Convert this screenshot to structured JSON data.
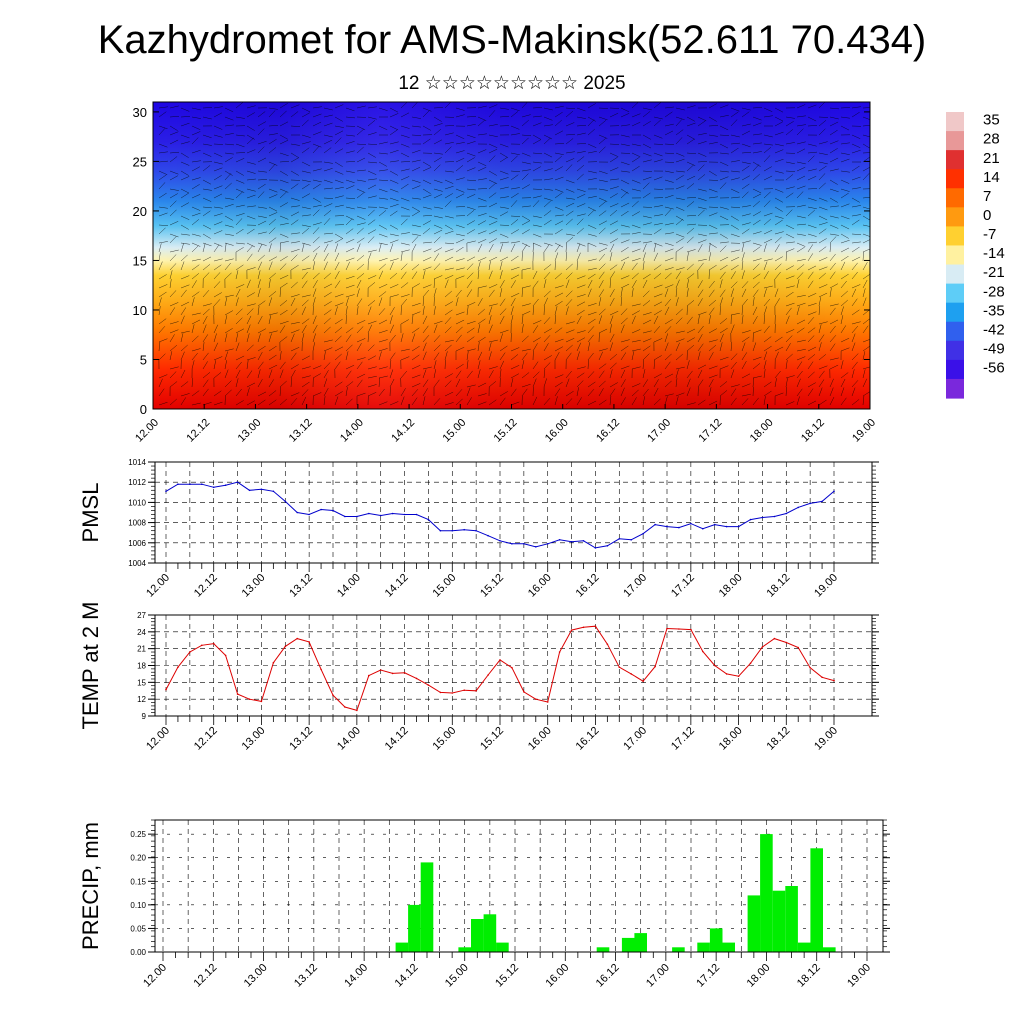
{
  "header": {
    "title": "Kazhydromet for AMS-Makinsk(52.611 70.434)",
    "subtitle": "12 ☆☆☆☆☆☆☆☆☆ 2025"
  },
  "time_labels": [
    "12.00",
    "12.12",
    "13.00",
    "13.12",
    "14.00",
    "14.12",
    "15.00",
    "15.12",
    "16.00",
    "16.12",
    "17.00",
    "17.12",
    "18.00",
    "18.12",
    "19.00"
  ],
  "chart_data": [
    {
      "type": "heatmap",
      "title": "",
      "x_ticks": [
        "12.00",
        "12.12",
        "13.00",
        "13.12",
        "14.00",
        "14.12",
        "15.00",
        "15.12",
        "16.00",
        "16.12",
        "17.00",
        "17.12",
        "18.00",
        "18.12",
        "19.00"
      ],
      "xlim": [
        0,
        168
      ],
      "ylim": [
        0,
        31
      ],
      "y_ticks": [
        0,
        5,
        10,
        15,
        20,
        25,
        30
      ],
      "colorbar": {
        "labels": [
          "35",
          "28",
          "21",
          "14",
          "7",
          "0",
          "-7",
          "-14",
          "-21",
          "-28",
          "-35",
          "-42",
          "-49",
          "-56"
        ],
        "colors": [
          "#f0c8c8",
          "#e89898",
          "#e03030",
          "#ff3000",
          "#ff6a00",
          "#ff9a10",
          "#ffd030",
          "#fff1a0",
          "#d8ecf4",
          "#5ecdf7",
          "#1ea0f0",
          "#3060ee",
          "#4030e6",
          "#3a10e8",
          "#7a28dc"
        ]
      },
      "gradient_levels": [
        {
          "level": 0,
          "color": "#e40000"
        },
        {
          "level": 4,
          "color": "#ff2a00"
        },
        {
          "level": 8,
          "color": "#ff7a00"
        },
        {
          "level": 11,
          "color": "#ffae18"
        },
        {
          "level": 13.5,
          "color": "#ffd232"
        },
        {
          "level": 15,
          "color": "#fff4b0"
        },
        {
          "level": 16.3,
          "color": "#dbeef5"
        },
        {
          "level": 18.5,
          "color": "#58c3f3"
        },
        {
          "level": 21,
          "color": "#2a86ec"
        },
        {
          "level": 24,
          "color": "#2e48ea"
        },
        {
          "level": 27,
          "color": "#2a1ee6"
        },
        {
          "level": 31,
          "color": "#1f06e4"
        }
      ]
    },
    {
      "type": "line",
      "ylabel": "PMSL",
      "ylim": [
        1004,
        1014
      ],
      "y_ticks": [
        1004,
        1006,
        1008,
        1010,
        1012,
        1014
      ],
      "color": "#0000cc",
      "x_ticks": [
        "12.00",
        "12.12",
        "13.00",
        "13.12",
        "14.00",
        "14.12",
        "15.00",
        "15.12",
        "16.00",
        "16.12",
        "17.00",
        "17.12",
        "18.00",
        "18.12",
        "19.00"
      ],
      "x": [
        0,
        3,
        6,
        9,
        12,
        15,
        18,
        21,
        24,
        27,
        30,
        33,
        36,
        39,
        42,
        45,
        48,
        51,
        54,
        57,
        60,
        63,
        66,
        69,
        72,
        75,
        78,
        81,
        84,
        87,
        90,
        93,
        96,
        99,
        102,
        105,
        108,
        111,
        114,
        117,
        120,
        123,
        126,
        129,
        132,
        135,
        138,
        141,
        144,
        147,
        150,
        153,
        156,
        159,
        162,
        165,
        168
      ],
      "values": [
        1011.1,
        1011.8,
        1011.8,
        1011.8,
        1011.5,
        1011.7,
        1012.0,
        1011.2,
        1011.3,
        1011.1,
        1010.1,
        1009.0,
        1008.8,
        1009.3,
        1009.2,
        1008.6,
        1008.6,
        1008.9,
        1008.7,
        1008.9,
        1008.8,
        1008.8,
        1008.3,
        1007.2,
        1007.2,
        1007.3,
        1007.2,
        1006.7,
        1006.2,
        1005.9,
        1005.9,
        1005.6,
        1005.9,
        1006.3,
        1006.1,
        1006.2,
        1005.5,
        1005.7,
        1006.4,
        1006.3,
        1006.9,
        1007.8,
        1007.6,
        1007.5,
        1007.9,
        1007.4,
        1007.8,
        1007.6,
        1007.6,
        1008.3,
        1008.5,
        1008.6,
        1008.9,
        1009.5,
        1009.9,
        1010.1,
        1011.1
      ]
    },
    {
      "type": "line",
      "ylabel": "TEMP at 2 M",
      "ylim": [
        9,
        27
      ],
      "y_ticks": [
        9,
        12,
        15,
        18,
        21,
        24,
        27
      ],
      "color": "#dd0000",
      "x_ticks": [
        "12.00",
        "12.12",
        "13.00",
        "13.12",
        "14.00",
        "14.12",
        "15.00",
        "15.12",
        "16.00",
        "16.12",
        "17.00",
        "17.12",
        "18.00",
        "18.12",
        "19.00"
      ],
      "x": [
        0,
        3,
        6,
        9,
        12,
        15,
        18,
        21,
        24,
        27,
        30,
        33,
        36,
        39,
        42,
        45,
        48,
        51,
        54,
        57,
        60,
        63,
        66,
        69,
        72,
        75,
        78,
        81,
        84,
        87,
        90,
        93,
        96,
        99,
        102,
        105,
        108,
        111,
        114,
        117,
        120,
        123,
        126,
        129,
        132,
        135,
        138,
        141,
        144,
        147,
        150,
        153,
        156,
        159,
        162,
        165,
        168
      ],
      "values": [
        13.7,
        17.7,
        20.4,
        21.6,
        21.9,
        19.8,
        12.9,
        12.0,
        11.6,
        18.5,
        21.4,
        22.8,
        22.2,
        17.3,
        12.7,
        10.6,
        10.0,
        16.2,
        17.2,
        16.6,
        16.7,
        15.7,
        14.5,
        13.2,
        13.1,
        13.6,
        13.5,
        16.3,
        19.0,
        17.6,
        13.3,
        12.0,
        11.5,
        20.4,
        24.3,
        24.8,
        25.0,
        21.8,
        17.7,
        16.5,
        15.2,
        17.8,
        24.6,
        24.5,
        24.4,
        20.5,
        18.0,
        16.5,
        16.1,
        18.4,
        21.3,
        22.8,
        22.1,
        21.2,
        17.6,
        15.9,
        15.3
      ]
    },
    {
      "type": "bar",
      "ylabel": "PRECIP, mm",
      "ylim": [
        0,
        0.28
      ],
      "y_ticks": [
        "0.00",
        "0.05",
        "0.10",
        "0.15",
        "0.20",
        "0.25"
      ],
      "color": "#00ee00",
      "x_ticks": [
        "12.00",
        "12.12",
        "13.00",
        "13.12",
        "14.00",
        "14.12",
        "15.00",
        "15.12",
        "16.00",
        "16.12",
        "17.00",
        "17.12",
        "18.00",
        "18.12",
        "19.00"
      ],
      "x": [
        57,
        60,
        63,
        72,
        75,
        78,
        81,
        105,
        111,
        114,
        123,
        129,
        132,
        135,
        141,
        144,
        147,
        150,
        153,
        156,
        159
      ],
      "values": [
        0.02,
        0.1,
        0.19,
        0.01,
        0.07,
        0.08,
        0.02,
        0.01,
        0.03,
        0.04,
        0.01,
        0.02,
        0.05,
        0.02,
        0.12,
        0.25,
        0.13,
        0.14,
        0.02,
        0.22,
        0.01
      ]
    }
  ]
}
